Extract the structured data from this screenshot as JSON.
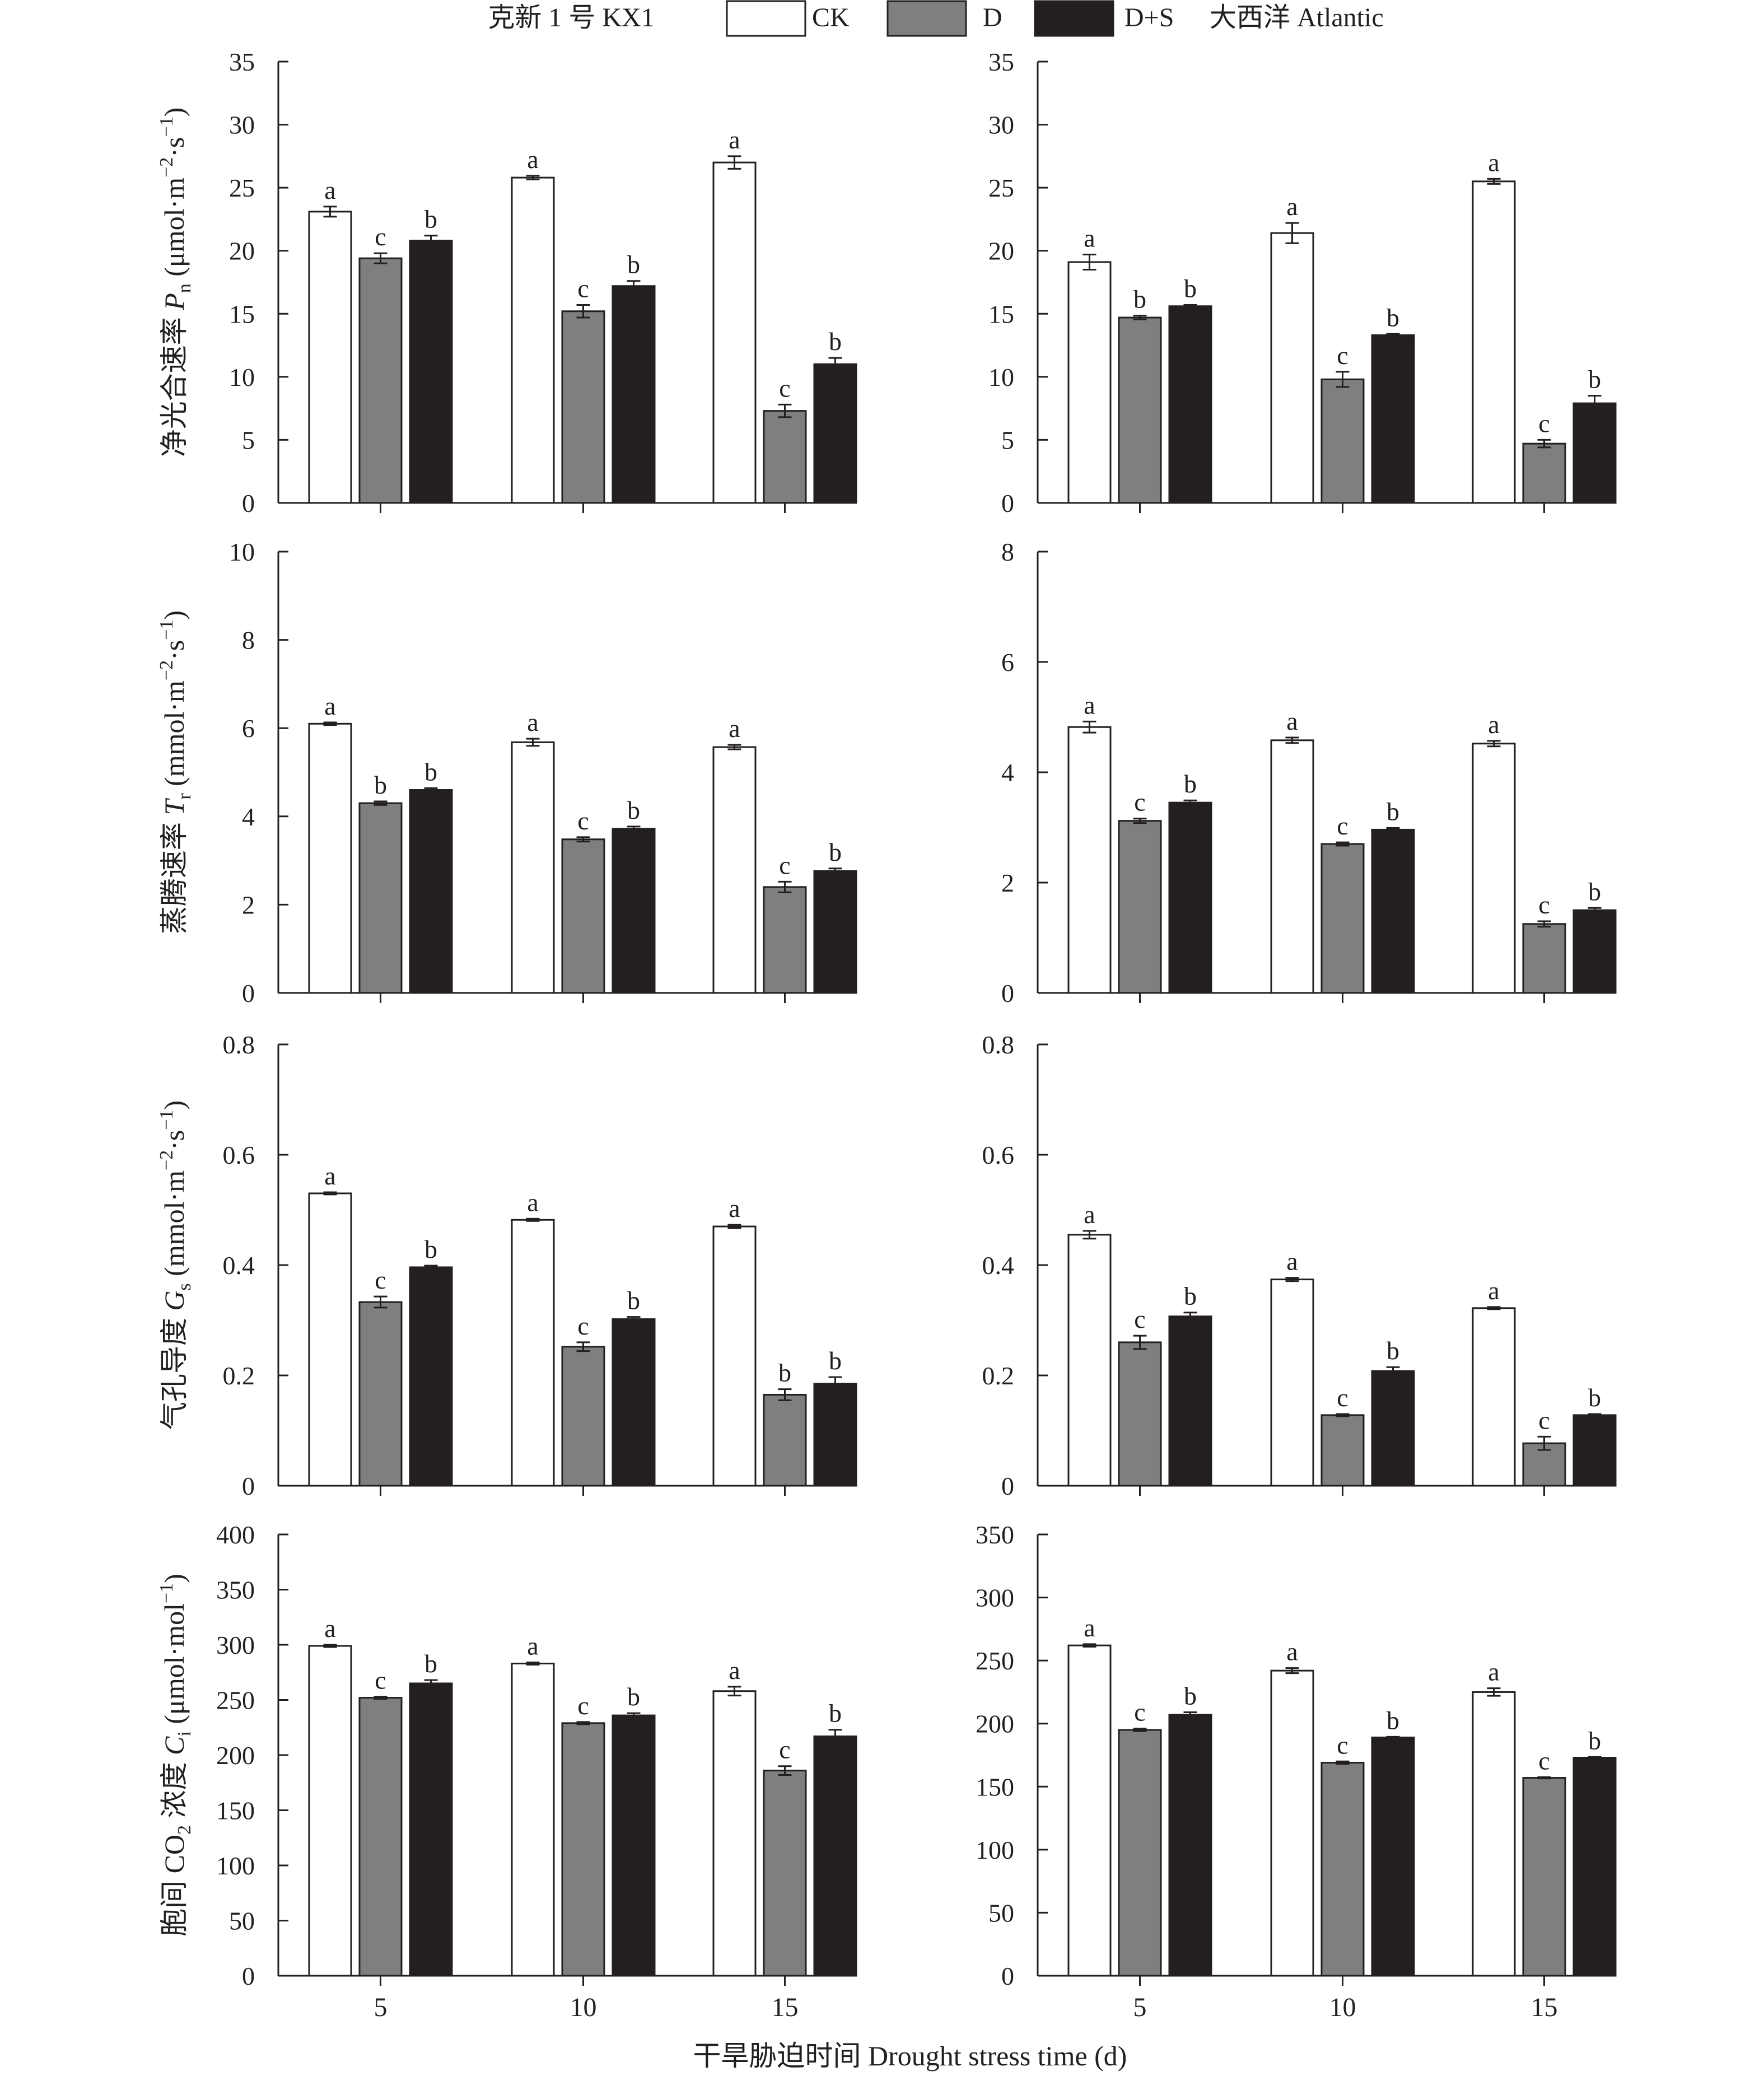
{
  "legend": {
    "left_text": "克新 1 号 KX1",
    "right_text": "大西洋 Atlantic",
    "items": [
      {
        "label": "CK",
        "color": "#ffffff"
      },
      {
        "label": "D",
        "color": "#7f7f7f"
      },
      {
        "label": "D+S",
        "color": "#231f20"
      }
    ]
  },
  "x_title": "干旱胁迫时间 Drought stress time (d)",
  "chart_data": [
    {
      "type": "bar",
      "variety": "KX1",
      "ylabel": "净光合速率 Pn (μmol·m−2·s−1)",
      "ylim": [
        0,
        35
      ],
      "yticks": [
        0,
        5,
        10,
        15,
        20,
        25,
        30,
        35
      ],
      "categories": [
        "5",
        "10",
        "15"
      ],
      "series": [
        {
          "name": "CK",
          "values": [
            23.1,
            25.8,
            27.0
          ],
          "errors": [
            0.4,
            0.15,
            0.5
          ],
          "letters": [
            "a",
            "a",
            "a"
          ]
        },
        {
          "name": "D",
          "values": [
            19.4,
            15.2,
            7.3
          ],
          "errors": [
            0.4,
            0.5,
            0.5
          ],
          "letters": [
            "c",
            "c",
            "c"
          ]
        },
        {
          "name": "D+S",
          "values": [
            20.8,
            17.2,
            11.0
          ],
          "errors": [
            0.4,
            0.4,
            0.5
          ],
          "letters": [
            "b",
            "b",
            "b"
          ]
        }
      ]
    },
    {
      "type": "bar",
      "variety": "Atlantic",
      "ylabel": "",
      "ylim": [
        0,
        35
      ],
      "yticks": [
        0,
        5,
        10,
        15,
        20,
        25,
        30,
        35
      ],
      "categories": [
        "5",
        "10",
        "15"
      ],
      "series": [
        {
          "name": "CK",
          "values": [
            19.1,
            21.4,
            25.5
          ],
          "errors": [
            0.6,
            0.8,
            0.2
          ],
          "letters": [
            "a",
            "a",
            "a"
          ]
        },
        {
          "name": "D",
          "values": [
            14.7,
            9.8,
            4.7
          ],
          "errors": [
            0.15,
            0.6,
            0.3
          ],
          "letters": [
            "b",
            "c",
            "c"
          ]
        },
        {
          "name": "D+S",
          "values": [
            15.6,
            13.3,
            7.9
          ],
          "errors": [
            0.1,
            0.1,
            0.6
          ],
          "letters": [
            "b",
            "b",
            "b"
          ]
        }
      ]
    },
    {
      "type": "bar",
      "variety": "KX1",
      "ylabel": "蒸腾速率 Tr (mmol·m−2·s−1)",
      "ylim": [
        0,
        10
      ],
      "yticks": [
        0,
        2,
        4,
        6,
        8,
        10
      ],
      "categories": [
        "5",
        "10",
        "15"
      ],
      "series": [
        {
          "name": "CK",
          "values": [
            6.1,
            5.68,
            5.57
          ],
          "errors": [
            0.03,
            0.08,
            0.05
          ],
          "letters": [
            "a",
            "a",
            "a"
          ]
        },
        {
          "name": "D",
          "values": [
            4.3,
            3.48,
            2.4
          ],
          "errors": [
            0.04,
            0.05,
            0.12
          ],
          "letters": [
            "b",
            "c",
            "c"
          ]
        },
        {
          "name": "D+S",
          "values": [
            4.6,
            3.72,
            2.76
          ],
          "errors": [
            0.04,
            0.05,
            0.06
          ],
          "letters": [
            "b",
            "b",
            "b"
          ]
        }
      ]
    },
    {
      "type": "bar",
      "variety": "Atlantic",
      "ylabel": "",
      "ylim": [
        0,
        8
      ],
      "yticks": [
        0,
        2,
        4,
        6,
        8
      ],
      "categories": [
        "5",
        "10",
        "15"
      ],
      "series": [
        {
          "name": "CK",
          "values": [
            4.82,
            4.58,
            4.52
          ],
          "errors": [
            0.1,
            0.05,
            0.05
          ],
          "letters": [
            "a",
            "a",
            "a"
          ]
        },
        {
          "name": "D",
          "values": [
            3.12,
            2.7,
            1.25
          ],
          "errors": [
            0.04,
            0.03,
            0.05
          ],
          "letters": [
            "c",
            "c",
            "c"
          ]
        },
        {
          "name": "D+S",
          "values": [
            3.45,
            2.96,
            1.5
          ],
          "errors": [
            0.04,
            0.03,
            0.04
          ],
          "letters": [
            "b",
            "b",
            "b"
          ]
        }
      ]
    },
    {
      "type": "bar",
      "variety": "KX1",
      "ylabel": "气孔导度 Gs (mmol·m−2·s−1)",
      "ylim": [
        0,
        0.8
      ],
      "yticks": [
        0,
        0.2,
        0.4,
        0.6,
        0.8
      ],
      "categories": [
        "5",
        "10",
        "15"
      ],
      "series": [
        {
          "name": "CK",
          "values": [
            0.53,
            0.482,
            0.47
          ],
          "errors": [
            0.002,
            0.002,
            0.003
          ],
          "letters": [
            "a",
            "a",
            "a"
          ]
        },
        {
          "name": "D",
          "values": [
            0.333,
            0.252,
            0.165
          ],
          "errors": [
            0.01,
            0.008,
            0.01
          ],
          "letters": [
            "c",
            "c",
            "b"
          ]
        },
        {
          "name": "D+S",
          "values": [
            0.396,
            0.302,
            0.185
          ],
          "errors": [
            0.003,
            0.004,
            0.012
          ],
          "letters": [
            "b",
            "b",
            "b"
          ]
        }
      ]
    },
    {
      "type": "bar",
      "variety": "Atlantic",
      "ylabel": "",
      "ylim": [
        0,
        0.8
      ],
      "yticks": [
        0,
        0.2,
        0.4,
        0.6,
        0.8
      ],
      "categories": [
        "5",
        "10",
        "15"
      ],
      "series": [
        {
          "name": "CK",
          "values": [
            0.455,
            0.374,
            0.322
          ],
          "errors": [
            0.007,
            0.003,
            0.002
          ],
          "letters": [
            "a",
            "a",
            "a"
          ]
        },
        {
          "name": "D",
          "values": [
            0.26,
            0.128,
            0.077
          ],
          "errors": [
            0.012,
            0.002,
            0.012
          ],
          "letters": [
            "c",
            "c",
            "c"
          ]
        },
        {
          "name": "D+S",
          "values": [
            0.307,
            0.208,
            0.128
          ],
          "errors": [
            0.007,
            0.007,
            0.002
          ],
          "letters": [
            "b",
            "b",
            "b"
          ]
        }
      ]
    },
    {
      "type": "bar",
      "variety": "KX1",
      "ylabel": "胞间 CO2 浓度 Ci (μmol·mol−1)",
      "ylim": [
        0,
        400
      ],
      "yticks": [
        0,
        50,
        100,
        150,
        200,
        250,
        300,
        350,
        400
      ],
      "categories": [
        "5",
        "10",
        "15"
      ],
      "series": [
        {
          "name": "CK",
          "values": [
            299,
            283,
            258
          ],
          "errors": [
            1,
            1,
            4
          ],
          "letters": [
            "a",
            "a",
            "a"
          ]
        },
        {
          "name": "D",
          "values": [
            252,
            229,
            186
          ],
          "errors": [
            1,
            1,
            4
          ],
          "letters": [
            "c",
            "c",
            "c"
          ]
        },
        {
          "name": "D+S",
          "values": [
            265,
            236,
            217
          ],
          "errors": [
            3,
            2,
            6
          ],
          "letters": [
            "b",
            "b",
            "b"
          ]
        }
      ]
    },
    {
      "type": "bar",
      "variety": "Atlantic",
      "ylabel": "",
      "ylim": [
        0,
        350
      ],
      "yticks": [
        0,
        50,
        100,
        150,
        200,
        250,
        300,
        350
      ],
      "categories": [
        "5",
        "10",
        "15"
      ],
      "series": [
        {
          "name": "CK",
          "values": [
            262,
            242,
            225
          ],
          "errors": [
            1,
            2,
            3
          ],
          "letters": [
            "a",
            "a",
            "a"
          ]
        },
        {
          "name": "D",
          "values": [
            195,
            169,
            157
          ],
          "errors": [
            1,
            1,
            0.5
          ],
          "letters": [
            "c",
            "c",
            "c"
          ]
        },
        {
          "name": "D+S",
          "values": [
            207,
            189,
            173
          ],
          "errors": [
            2,
            0.5,
            0.5
          ],
          "letters": [
            "b",
            "b",
            "b"
          ]
        }
      ]
    }
  ]
}
